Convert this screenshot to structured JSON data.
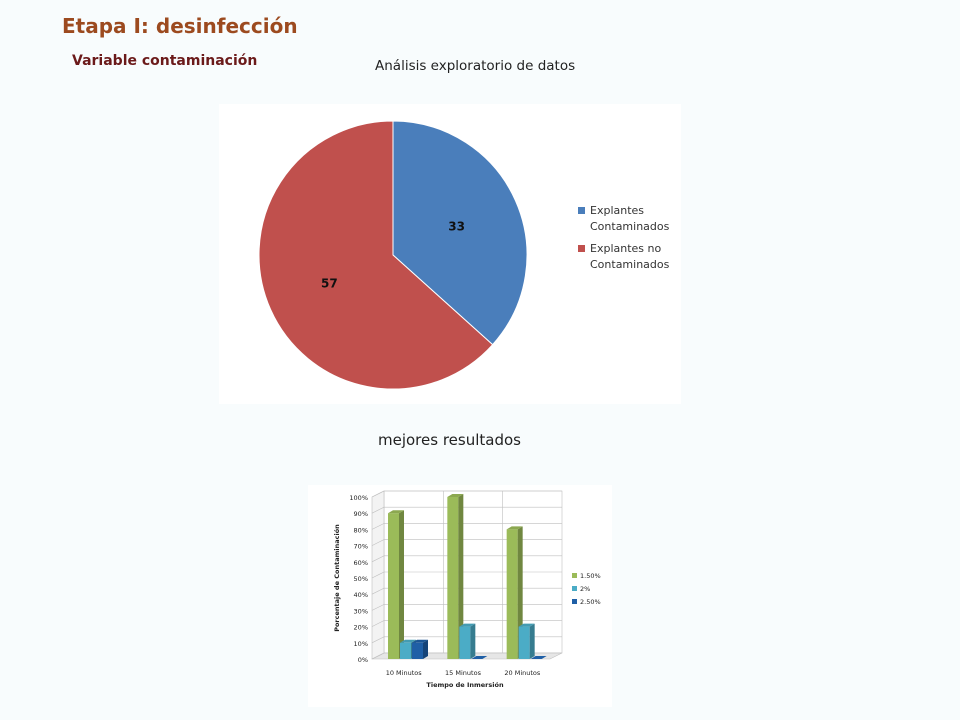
{
  "slide": {
    "title": "Etapa I: desinfección",
    "subtitle": "Variable contaminación",
    "caption_top": "Análisis exploratorio de datos",
    "caption_bottom": "mejores resultados"
  },
  "colors": {
    "title": "#9c4a1f",
    "subtitle": "#6b1a1a",
    "pie_blue": "#4a7ebb",
    "pie_red": "#c0504d",
    "bar_green": "#9bbb59",
    "bar_cyan": "#4bacc6",
    "bar_blue": "#1f5fa6"
  },
  "chart_data": [
    {
      "type": "pie",
      "title": "",
      "labels": [
        "Explantes Contaminados",
        "Explantes no Contaminados"
      ],
      "legend_lines": [
        [
          "Explantes",
          "Contaminados"
        ],
        [
          "Explantes no",
          "Contaminados"
        ]
      ],
      "values": [
        33,
        57
      ],
      "data_labels": [
        "33",
        "57"
      ],
      "colors": [
        "#4a7ebb",
        "#c0504d"
      ],
      "legend": "right"
    },
    {
      "type": "bar",
      "title": "",
      "categories": [
        "10 Minutos",
        "15 Minutos",
        "20 Minutos"
      ],
      "series": [
        {
          "name": "1.50%",
          "values": [
            90,
            100,
            80
          ],
          "color": "#9bbb59"
        },
        {
          "name": "2%",
          "values": [
            10,
            20,
            20
          ],
          "color": "#4bacc6"
        },
        {
          "name": "2.50%",
          "values": [
            10,
            0,
            0
          ],
          "color": "#1f5fa6"
        }
      ],
      "xlabel": "Tiempo de Inmersión",
      "ylabel": "Porcentaje de Contaminación",
      "ylim": [
        0,
        100
      ],
      "yticks": [
        "0%",
        "10%",
        "20%",
        "30%",
        "40%",
        "50%",
        "60%",
        "70%",
        "80%",
        "90%",
        "100%"
      ],
      "grid": true,
      "legend": "right"
    }
  ]
}
